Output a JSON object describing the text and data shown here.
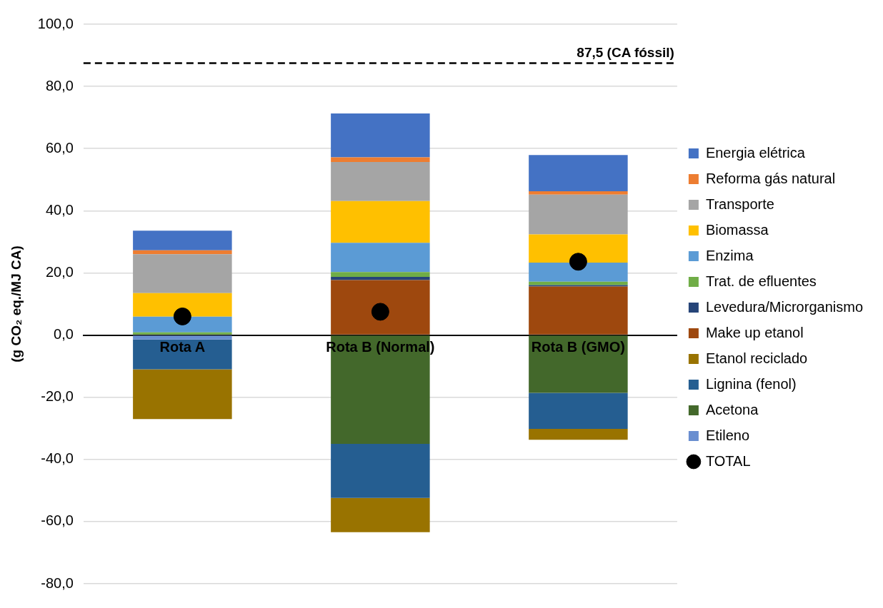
{
  "chart_data": {
    "type": "bar",
    "stacked": true,
    "ylabel": "(g CO₂ eq./MJ CA)",
    "categories": [
      "Rota A",
      "Rota B (Normal)",
      "Rota B (GMO)"
    ],
    "series": [
      {
        "name": "Etileno",
        "color": "#698ed0",
        "values": [
          -1.4,
          null,
          null
        ]
      },
      {
        "name": "Acetona",
        "color": "#43682b",
        "values": [
          null,
          -35.0,
          -18.6
        ]
      },
      {
        "name": "Lignina (fenol)",
        "color": "#255e91",
        "values": [
          -9.6,
          -17.4,
          -11.6
        ]
      },
      {
        "name": "Etanol reciclado",
        "color": "#997300",
        "values": [
          -16.0,
          -11.0,
          -3.5
        ]
      },
      {
        "name": "Make up etanol",
        "color": "#9e480e",
        "values": [
          null,
          17.7,
          15.6
        ]
      },
      {
        "name": "Levedura/Microrganismo",
        "color": "#264478",
        "values": [
          null,
          1.0,
          0.5
        ]
      },
      {
        "name": "Trat. de efluentes",
        "color": "#70ad47",
        "values": [
          0.9,
          1.6,
          1.1
        ]
      },
      {
        "name": "Enzima",
        "color": "#5b9bd5",
        "values": [
          5.0,
          9.4,
          6.1
        ]
      },
      {
        "name": "Biomassa",
        "color": "#ffc000",
        "values": [
          7.6,
          13.4,
          9.1
        ]
      },
      {
        "name": "Transporte",
        "color": "#a5a5a5",
        "values": [
          12.5,
          12.6,
          12.8
        ]
      },
      {
        "name": "Reforma gás natural",
        "color": "#ed7d31",
        "values": [
          1.3,
          1.5,
          1.1
        ]
      },
      {
        "name": "Energia elétrica",
        "color": "#4472c4",
        "values": [
          6.3,
          14.1,
          11.6
        ]
      },
      {
        "name": "TOTAL",
        "type": "scatter",
        "color": "#000000",
        "marker": "circle",
        "x": [
          "Rota A",
          "Rota B (Normal)",
          "Rota B (GMO)"
        ],
        "values": [
          6.0,
          7.5,
          23.6
        ]
      }
    ],
    "ylim": [
      -80,
      100
    ],
    "yticks": [
      {
        "value": -80,
        "label": "-80,0"
      },
      {
        "value": -60,
        "label": "-60,0"
      },
      {
        "value": -40,
        "label": "-40,0"
      },
      {
        "value": -20,
        "label": "-20,0"
      },
      {
        "value": 0,
        "label": "0,0"
      },
      {
        "value": 20,
        "label": "20,0"
      },
      {
        "value": 40,
        "label": "40,0"
      },
      {
        "value": 60,
        "label": "60,0"
      },
      {
        "value": 80,
        "label": "80,0"
      },
      {
        "value": 100,
        "label": "100,0"
      }
    ],
    "grid": "y",
    "legend": "right",
    "ref_lines": [
      {
        "axis": "y",
        "value": 87.5,
        "label": "87,5 (CA fóssil)",
        "color": "#000000",
        "line_style": "dashed"
      }
    ]
  }
}
